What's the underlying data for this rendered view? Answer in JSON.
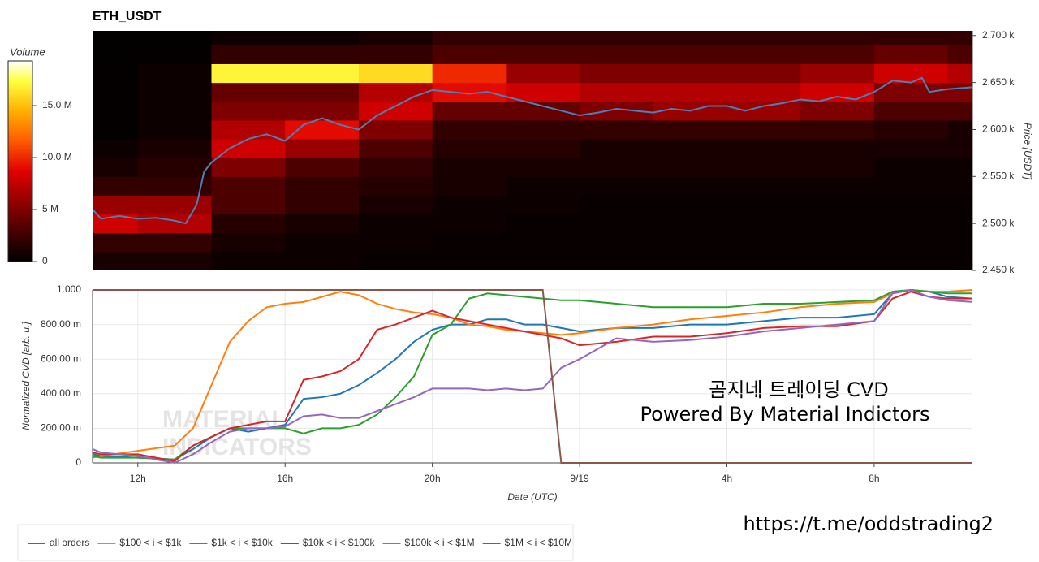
{
  "chart_data": [
    {
      "type": "heatmap",
      "title": "ETH_USDT",
      "colorbar_label": "Volume",
      "y_label": "Price [USDT]",
      "xlim": [
        10.77,
        34.67
      ],
      "x_bins": [
        10.77,
        12,
        14,
        16,
        18,
        20,
        22,
        24,
        26,
        28,
        30,
        32,
        34,
        34.67
      ],
      "y_bins": [
        2450,
        2470,
        2490,
        2510,
        2530,
        2550,
        2570,
        2590,
        2610,
        2630,
        2650,
        2670,
        2690,
        2710
      ],
      "values": [
        [
          1,
          1,
          0.5,
          0.5,
          0.3,
          0.3,
          0.3,
          0.3,
          0.3,
          0.3,
          0.3,
          0.3,
          0.3
        ],
        [
          2,
          2,
          1,
          0.5,
          0.5,
          0.3,
          0.3,
          0.3,
          0.3,
          0.3,
          0.3,
          0.3,
          0.3
        ],
        [
          8,
          7,
          1.5,
          1,
          0.5,
          0.5,
          0.3,
          0.3,
          0.3,
          0.3,
          0.3,
          0.3,
          0.3
        ],
        [
          6,
          6,
          3,
          2,
          1,
          0.5,
          0.5,
          0.3,
          0.3,
          0.3,
          0.3,
          0.3,
          0.3
        ],
        [
          2,
          2,
          3,
          2,
          1.5,
          1,
          0.5,
          0.5,
          0.5,
          0.5,
          0.5,
          0.5,
          0.5
        ],
        [
          1,
          1.5,
          5,
          3,
          2,
          1,
          1,
          1,
          1,
          1,
          1,
          0.5,
          0.5
        ],
        [
          0.5,
          1,
          8,
          6,
          3,
          1.5,
          1.5,
          1,
          1,
          1,
          1,
          1,
          1
        ],
        [
          0.2,
          0.5,
          7,
          9,
          5,
          2,
          2,
          2,
          2,
          2,
          2,
          1.5,
          1
        ],
        [
          0.2,
          0.5,
          5,
          5,
          8,
          4,
          4,
          5,
          6,
          6,
          5,
          3,
          3
        ],
        [
          0.2,
          0.5,
          4,
          4,
          7,
          9,
          8,
          7,
          7,
          7,
          8,
          5,
          5
        ],
        [
          0.2,
          0.5,
          17,
          17,
          16,
          10,
          6,
          5,
          5,
          5,
          6,
          8,
          7
        ],
        [
          0.1,
          0.2,
          2,
          2,
          2,
          3,
          3,
          3,
          3,
          3,
          3,
          4,
          3
        ],
        [
          0.1,
          0.1,
          0.5,
          0.5,
          1,
          2,
          2,
          2,
          2,
          2,
          2,
          2,
          2
        ]
      ],
      "clim": [
        0,
        19.3
      ],
      "colorbar_ticks": [
        0,
        {
          "value": 5,
          "label": "5 M"
        },
        {
          "value": 10,
          "label": "10.0 M"
        },
        {
          "value": 15,
          "label": "15.0 M"
        }
      ],
      "ylim": [
        2450,
        2705
      ],
      "yticks": [
        {
          "value": 2450,
          "label": "2.450 k"
        },
        {
          "value": 2500,
          "label": "2.500 k"
        },
        {
          "value": 2550,
          "label": "2.550 k"
        },
        {
          "value": 2600,
          "label": "2.600 k"
        },
        {
          "value": 2650,
          "label": "2.650 k"
        },
        {
          "value": 2700,
          "label": "2.700 k"
        }
      ],
      "price_line": {
        "color": "#4a82b8",
        "x": [
          10.77,
          11,
          11.5,
          12,
          12.5,
          13,
          13.3,
          13.6,
          13.8,
          14,
          14.5,
          15,
          15.5,
          16,
          16.5,
          17,
          17.5,
          18,
          18.5,
          19,
          19.5,
          20,
          20.5,
          21,
          21.5,
          22,
          22.5,
          23,
          23.5,
          24,
          24.5,
          25,
          25.5,
          26,
          26.5,
          27,
          27.5,
          28,
          28.5,
          29,
          29.5,
          30,
          30.5,
          31,
          31.5,
          32,
          32.5,
          33,
          33.3,
          33.5,
          34,
          34.67
        ],
        "values": [
          2515,
          2505,
          2508,
          2505,
          2506,
          2503,
          2500,
          2520,
          2555,
          2565,
          2580,
          2590,
          2595,
          2588,
          2605,
          2612,
          2605,
          2600,
          2615,
          2625,
          2635,
          2642,
          2640,
          2638,
          2640,
          2635,
          2630,
          2625,
          2620,
          2615,
          2618,
          2622,
          2620,
          2618,
          2622,
          2620,
          2625,
          2625,
          2620,
          2625,
          2628,
          2632,
          2630,
          2635,
          2632,
          2640,
          2652,
          2650,
          2655,
          2640,
          2643,
          2645
        ]
      }
    },
    {
      "type": "line",
      "x_label": "Date (UTC)",
      "y_label": "Normalized CVD [arb. u.]",
      "grid": true,
      "xlim": [
        10.77,
        34.67
      ],
      "xticks": [
        {
          "value": 12,
          "label": "12h"
        },
        {
          "value": 16,
          "label": "16h"
        },
        {
          "value": 20,
          "label": "20h"
        },
        {
          "value": 24,
          "label": "9/19"
        },
        {
          "value": 28,
          "label": "4h"
        },
        {
          "value": 32,
          "label": "8h"
        }
      ],
      "ylim": [
        0,
        1
      ],
      "yticks": [
        0,
        {
          "value": 0.2,
          "label": "200.00 m"
        },
        {
          "value": 0.4,
          "label": "400.00 m"
        },
        {
          "value": 0.6,
          "label": "600.00 m"
        },
        {
          "value": 0.8,
          "label": "800.00 m"
        },
        {
          "value": 1,
          "label": "1.000"
        }
      ],
      "x": [
        10.77,
        11,
        12,
        13,
        13.5,
        14,
        14.5,
        15,
        15.5,
        16,
        16.5,
        17,
        17.5,
        18,
        18.5,
        19,
        19.5,
        20,
        20.5,
        21,
        21.5,
        22,
        22.5,
        23,
        23.5,
        24,
        25,
        26,
        27,
        28,
        29,
        30,
        31,
        32,
        32.5,
        33,
        33.5,
        34,
        34.67
      ],
      "series": [
        {
          "name": "all orders",
          "color": "#1f77b4",
          "values": [
            0.05,
            0.04,
            0.03,
            0.02,
            0.08,
            0.15,
            0.2,
            0.18,
            0.2,
            0.22,
            0.37,
            0.38,
            0.4,
            0.45,
            0.52,
            0.6,
            0.7,
            0.77,
            0.8,
            0.8,
            0.83,
            0.83,
            0.8,
            0.8,
            0.78,
            0.76,
            0.78,
            0.78,
            0.8,
            0.8,
            0.82,
            0.84,
            0.84,
            0.86,
            0.98,
            1.0,
            0.99,
            0.96,
            0.95
          ]
        },
        {
          "name": "$100 < i < $1k",
          "color": "#ff7f0e",
          "values": [
            0.03,
            0.04,
            0.07,
            0.1,
            0.2,
            0.45,
            0.7,
            0.82,
            0.9,
            0.92,
            0.93,
            0.96,
            0.99,
            0.97,
            0.92,
            0.89,
            0.87,
            0.86,
            0.84,
            0.8,
            0.79,
            0.77,
            0.76,
            0.75,
            0.74,
            0.75,
            0.78,
            0.8,
            0.83,
            0.85,
            0.87,
            0.9,
            0.92,
            0.93,
            0.98,
            1.0,
            0.99,
            0.99,
            1.0
          ]
        },
        {
          "name": "$1k < i < $10k",
          "color": "#2ca02c",
          "values": [
            0.04,
            0.03,
            0.03,
            0.02,
            0.1,
            0.15,
            0.2,
            0.2,
            0.2,
            0.2,
            0.17,
            0.2,
            0.2,
            0.22,
            0.28,
            0.38,
            0.5,
            0.74,
            0.8,
            0.95,
            0.98,
            0.97,
            0.96,
            0.95,
            0.94,
            0.94,
            0.92,
            0.9,
            0.9,
            0.9,
            0.92,
            0.92,
            0.93,
            0.94,
            0.99,
            1.0,
            0.99,
            0.98,
            0.98
          ]
        },
        {
          "name": "$10k < i < $100k",
          "color": "#d62728",
          "values": [
            0.06,
            0.05,
            0.05,
            0.01,
            0.1,
            0.15,
            0.2,
            0.22,
            0.24,
            0.24,
            0.48,
            0.5,
            0.53,
            0.6,
            0.77,
            0.8,
            0.84,
            0.88,
            0.84,
            0.82,
            0.8,
            0.78,
            0.76,
            0.74,
            0.72,
            0.68,
            0.7,
            0.73,
            0.73,
            0.75,
            0.78,
            0.79,
            0.79,
            0.82,
            0.95,
            0.99,
            0.96,
            0.95,
            0.95
          ]
        },
        {
          "name": "$100k < i < $1M",
          "color": "#9467bd",
          "values": [
            0.08,
            0.06,
            0.04,
            0.0,
            0.05,
            0.12,
            0.18,
            0.2,
            0.2,
            0.21,
            0.27,
            0.28,
            0.26,
            0.26,
            0.3,
            0.34,
            0.38,
            0.43,
            0.43,
            0.43,
            0.42,
            0.43,
            0.42,
            0.43,
            0.55,
            0.6,
            0.72,
            0.7,
            0.71,
            0.73,
            0.76,
            0.78,
            0.8,
            0.82,
            0.98,
            1.0,
            0.96,
            0.94,
            0.93
          ]
        },
        {
          "name": "$1M < i < $10M",
          "color": "#8c564b",
          "values": [
            1,
            1,
            1,
            1,
            1,
            1,
            1,
            1,
            1,
            1,
            1,
            1,
            1,
            1,
            1,
            1,
            1,
            1,
            1,
            1,
            1,
            1,
            1,
            1,
            0,
            0,
            0,
            0,
            0,
            0,
            0,
            0,
            0,
            0,
            0,
            0,
            0,
            0,
            0
          ]
        }
      ]
    }
  ],
  "annotations": {
    "caption_1": "곰지네 트레이딩 CVD",
    "caption_2": "Powered By Material Indictors",
    "link": "https://t.me/oddstrading2",
    "watermark_1": "MATERIAL",
    "watermark_2": "INDICATORS"
  }
}
